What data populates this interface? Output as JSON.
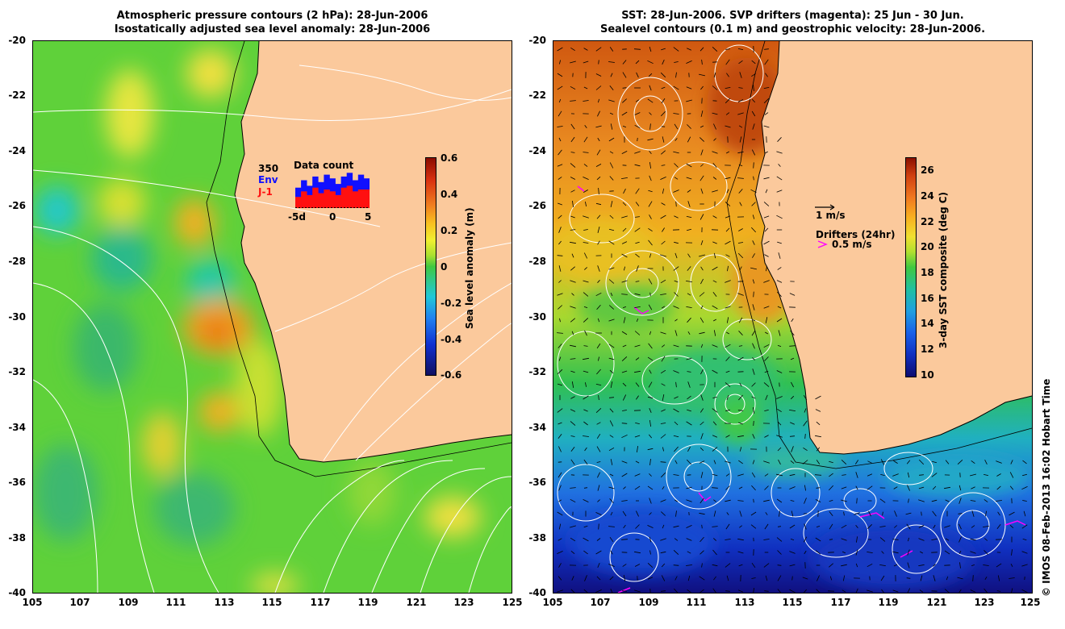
{
  "left_panel": {
    "title_line1": "Atmospheric pressure contours (2 hPa): 28-Jun-2006",
    "title_line2": "Isostatically adjusted sea level anomaly: 28-Jun-2006",
    "colorbar": {
      "label": "Sea level anomaly (m)",
      "ticks": [
        "0.6",
        "0.4",
        "0.2",
        "0",
        "-0.2",
        "-0.4",
        "-0.6"
      ]
    },
    "inset": {
      "count": "350",
      "env_label": "Env",
      "j1_label": "J-1",
      "title": "Data count",
      "ticks": [
        "-5d",
        "0",
        "5"
      ],
      "env_color": "#1010ff",
      "j1_color": "#ff1010",
      "env_fraction": [
        0.55,
        0.75,
        0.6,
        0.85,
        0.7,
        0.9,
        0.8,
        0.65,
        0.85,
        0.95,
        0.75,
        0.9,
        0.8
      ],
      "j1_fraction": [
        0.3,
        0.45,
        0.35,
        0.55,
        0.4,
        0.5,
        0.45,
        0.35,
        0.55,
        0.6,
        0.45,
        0.5,
        0.5
      ]
    }
  },
  "right_panel": {
    "title_line1": "SST: 28-Jun-2006. SVP drifters (magenta): 25 Jun - 30 Jun.",
    "title_line2": "Sealevel contours (0.1 m) and geostrophic velocity: 28-Jun-2006.",
    "colorbar": {
      "label": "3-day SST composite (deg C)",
      "ticks": [
        "26",
        "24",
        "22",
        "20",
        "18",
        "16",
        "14",
        "12",
        "10"
      ]
    },
    "vector_label": "1 m/s",
    "drifter_label": "Drifters (24hr)",
    "drifter_speed": "0.5 m/s",
    "drifter_color": "#ff00ff"
  },
  "axes": {
    "y_ticks": [
      "-20",
      "-22",
      "-24",
      "-26",
      "-28",
      "-30",
      "-32",
      "-34",
      "-36",
      "-38",
      "-40"
    ],
    "x_ticks": [
      "105",
      "107",
      "109",
      "111",
      "113",
      "115",
      "117",
      "119",
      "121",
      "123",
      "125"
    ]
  },
  "credit": "© IMOS 08-Feb-2013 16:02 Hobart Time",
  "colors": {
    "land": "#fbc99c",
    "contour": "#ffffff"
  }
}
